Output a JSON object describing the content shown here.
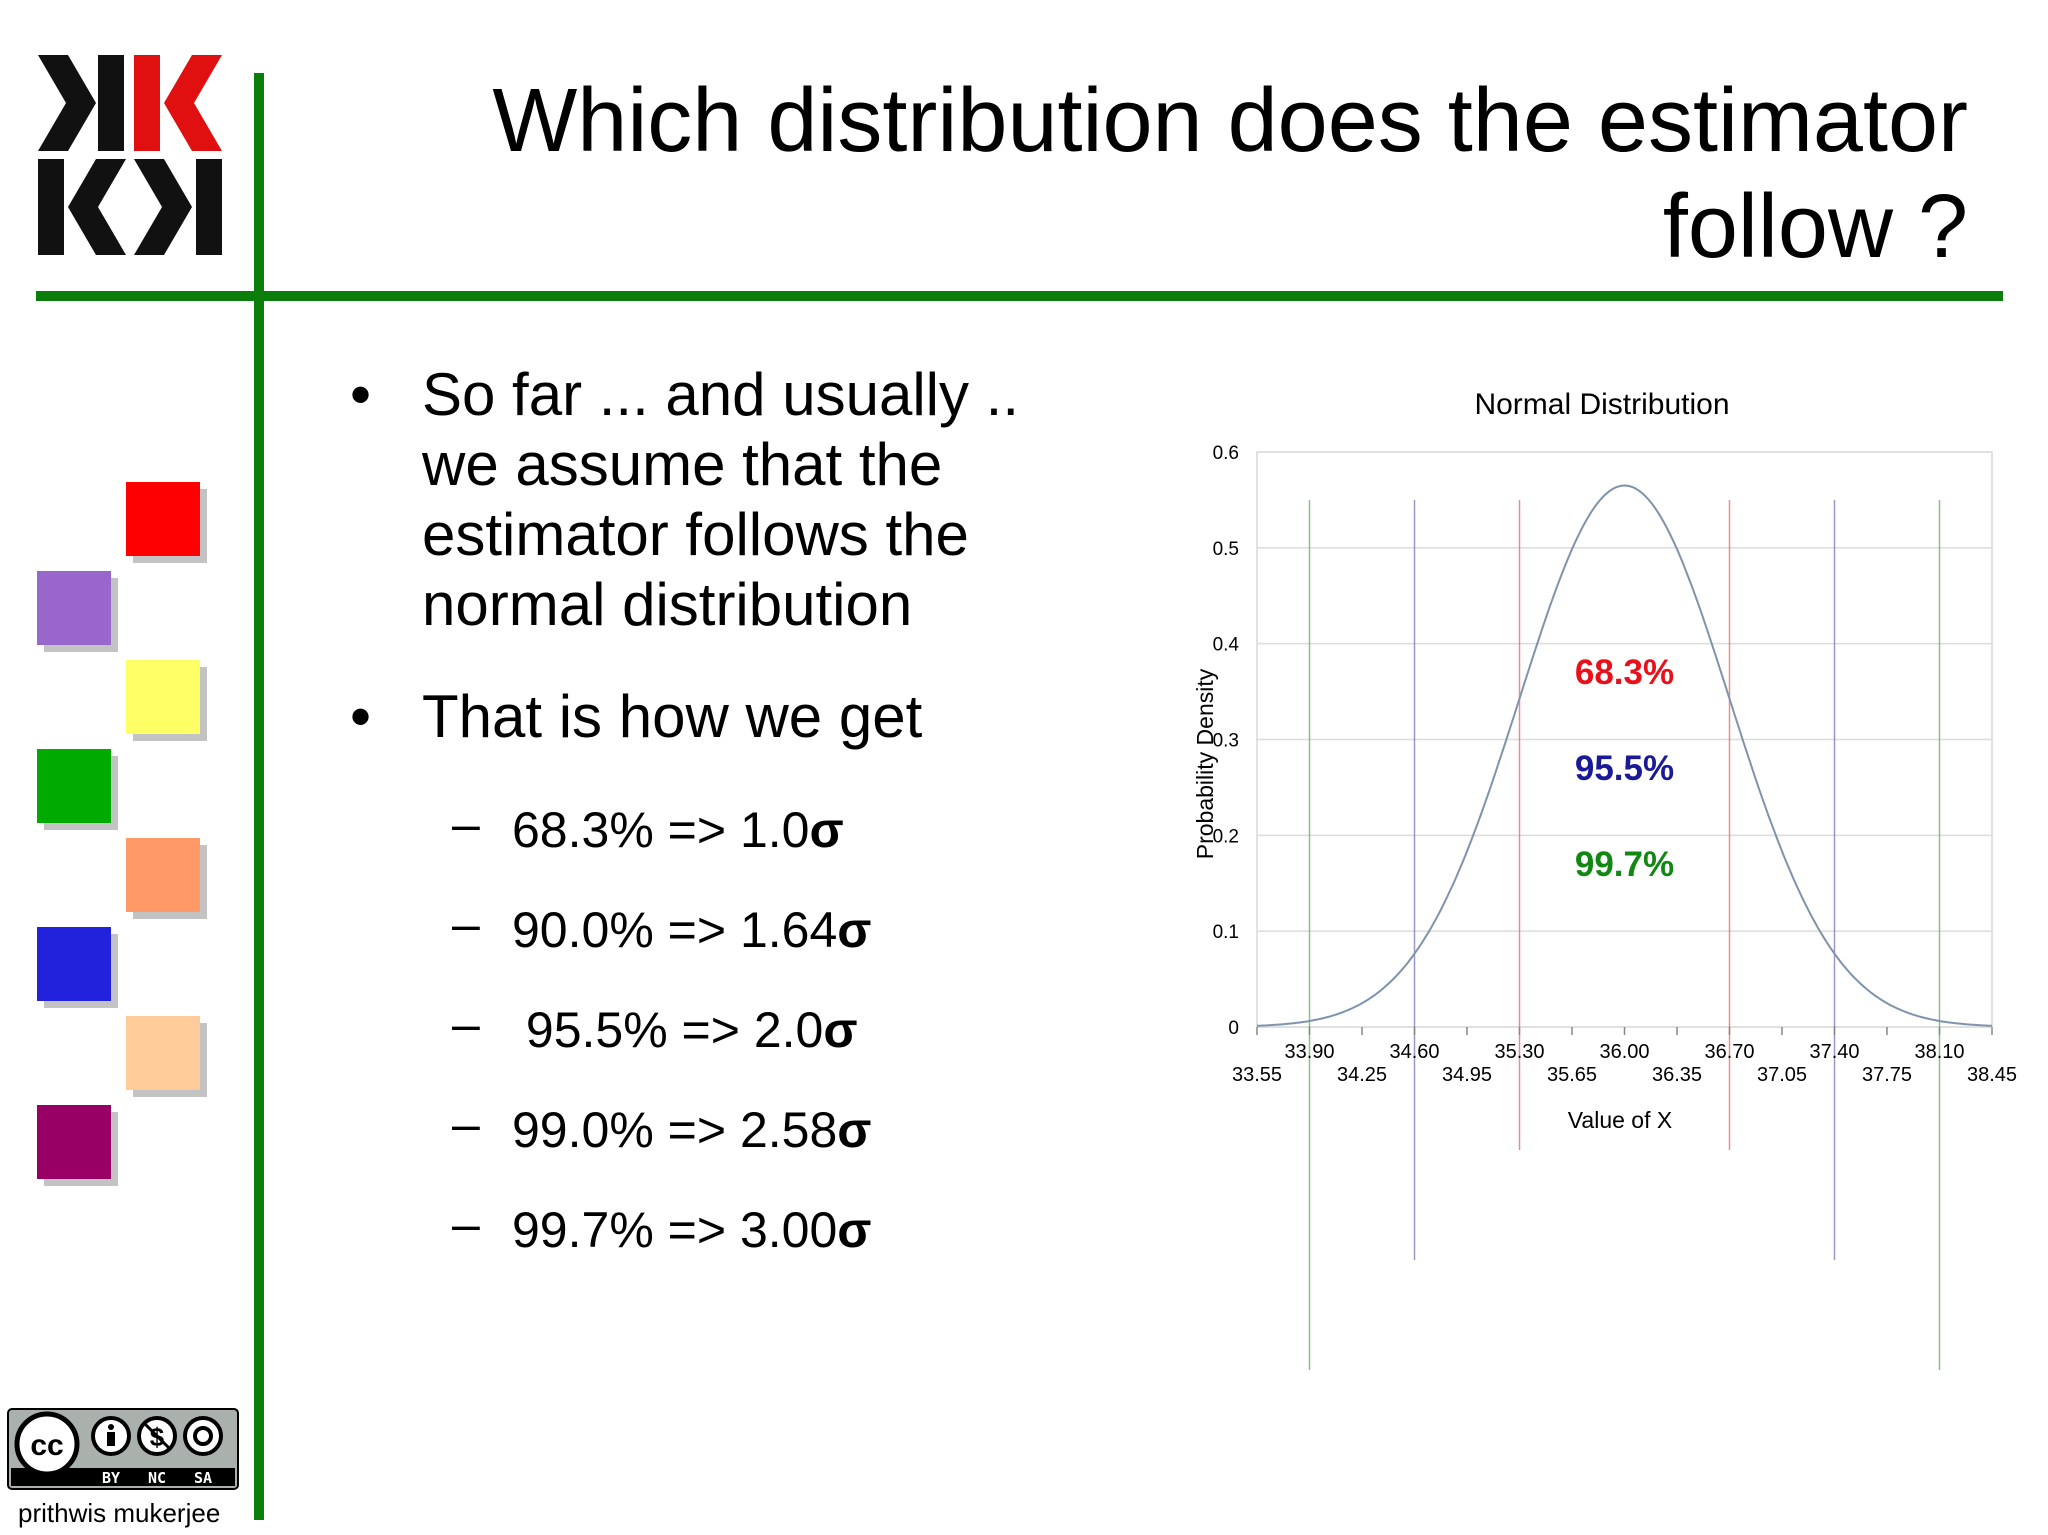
{
  "slide": {
    "title": "Which distribution does the estimator follow ?",
    "bullets": [
      "So far ... and usually .. we assume that the estimator follows the normal distribution",
      "That is how we get"
    ],
    "sub_items": [
      {
        "text": "68.3% => 1.0",
        "symbol": "σ"
      },
      {
        "text": "90.0% => 1.64",
        "symbol": "σ"
      },
      {
        "text": " 95.5% => 2.0",
        "symbol": "σ"
      },
      {
        "text": "99.0% => 2.58",
        "symbol": "σ"
      },
      {
        "text": "99.7% => 3.00",
        "symbol": "σ"
      }
    ],
    "bullet_glyph": "•",
    "dash_glyph": "–",
    "author": "prithwis mukerjee"
  },
  "decor_colors": {
    "frame_line": "#0a7d0a",
    "squares": [
      "#ff0000",
      "#9966cc",
      "#ffff66",
      "#00aa00",
      "#ff9966",
      "#2222dd",
      "#ffcc99",
      "#990066"
    ],
    "logo_black": "#111111",
    "logo_red": "#e01010"
  },
  "license": {
    "badge_labels": [
      "BY",
      "NC",
      "SA"
    ]
  },
  "chart_data": {
    "type": "line",
    "title": "Normal Distribution",
    "xlabel": "Value of X",
    "ylabel": "Probability Density",
    "xlim": [
      33.55,
      38.45
    ],
    "ylim": [
      0,
      0.6
    ],
    "y_ticks": [
      "0",
      "0.1",
      "0.2",
      "0.3",
      "0.4",
      "0.5",
      "0.6"
    ],
    "x_ticks_upper": [
      "33.90",
      "34.60",
      "35.30",
      "36.00",
      "36.70",
      "37.40",
      "38.10"
    ],
    "x_ticks_lower": [
      "33.55",
      "34.25",
      "34.95",
      "35.65",
      "36.35",
      "37.05",
      "37.75",
      "38.45"
    ],
    "grid": true,
    "series": [
      {
        "mean": 36.0,
        "sd": 0.7,
        "peak": 0.565,
        "color": "#7f93aa"
      }
    ],
    "sigma_lines": [
      {
        "x": 35.3,
        "color": "#e06a6a"
      },
      {
        "x": 36.7,
        "color": "#e06a6a"
      },
      {
        "x": 34.6,
        "color": "#7777bb"
      },
      {
        "x": 37.4,
        "color": "#7777bb"
      },
      {
        "x": 33.9,
        "color": "#66aa66"
      },
      {
        "x": 38.1,
        "color": "#66aa66"
      }
    ],
    "annotations": [
      {
        "text": "68.3%",
        "color": "#e8101a"
      },
      {
        "text": "95.5%",
        "color": "#1a1a99"
      },
      {
        "text": "99.7%",
        "color": "#118811"
      }
    ]
  }
}
